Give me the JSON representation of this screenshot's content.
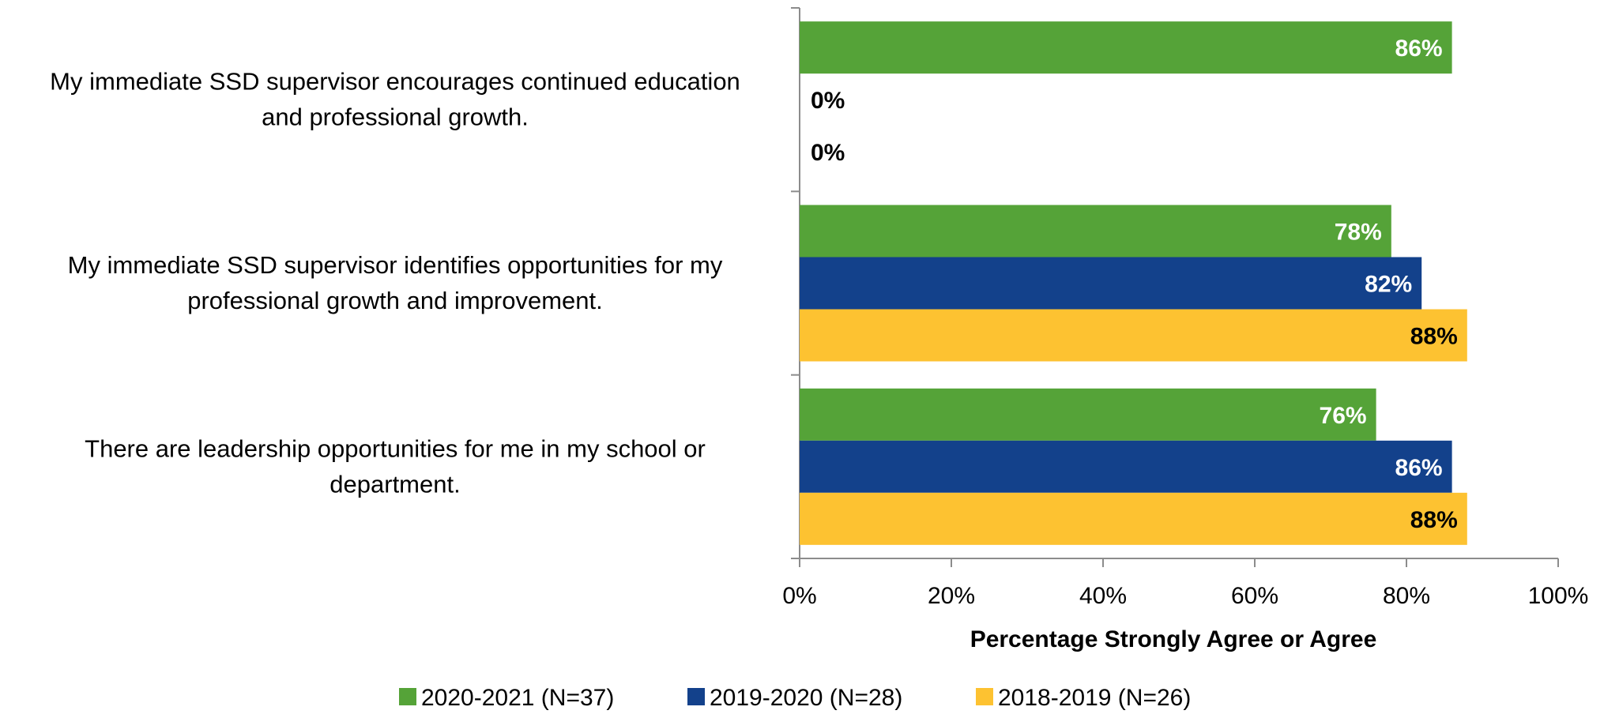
{
  "chart_data": {
    "type": "bar",
    "orientation": "horizontal",
    "categories": [
      "My immediate SSD supervisor encourages continued education and professional growth.",
      "My immediate SSD supervisor identifies opportunities for my professional growth and improvement.",
      "There are leadership opportunities for me in my school or department."
    ],
    "category_lines": [
      [
        "My immediate SSD supervisor encourages continued education",
        "and professional growth."
      ],
      [
        "My immediate SSD supervisor identifies opportunities for my",
        "professional growth and improvement."
      ],
      [
        "There are leadership opportunities for me in my school or",
        "department."
      ]
    ],
    "series": [
      {
        "name": "2020-2021 (N=37)",
        "color": "#55a338",
        "label_color": "#ffffff",
        "values": [
          86,
          78,
          76
        ]
      },
      {
        "name": "2019-2020 (N=28)",
        "color": "#13418b",
        "label_color": "#ffffff",
        "values": [
          0,
          82,
          86
        ]
      },
      {
        "name": "2018-2019 (N=26)",
        "color": "#fdc231",
        "label_color": "#000000",
        "values": [
          0,
          88,
          88
        ]
      }
    ],
    "value_suffix": "%",
    "xlabel": "Percentage Strongly Agree or Agree",
    "xlim": [
      0,
      100
    ],
    "xticks": [
      0,
      20,
      40,
      60,
      80,
      100
    ],
    "xtick_labels": [
      "0%",
      "20%",
      "40%",
      "60%",
      "80%",
      "100%"
    ],
    "grid": false,
    "legend_position": "bottom"
  }
}
